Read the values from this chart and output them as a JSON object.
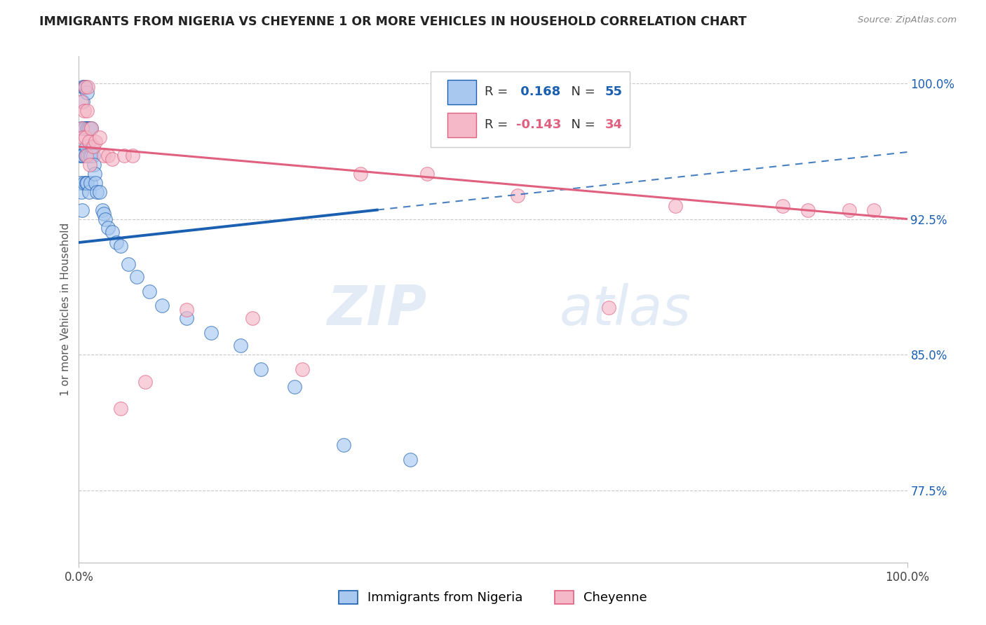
{
  "title": "IMMIGRANTS FROM NIGERIA VS CHEYENNE 1 OR MORE VEHICLES IN HOUSEHOLD CORRELATION CHART",
  "source": "Source: ZipAtlas.com",
  "ylabel": "1 or more Vehicles in Household",
  "legend_blue_r": "0.168",
  "legend_blue_n": "55",
  "legend_pink_r": "-0.143",
  "legend_pink_n": "34",
  "legend_label_blue": "Immigrants from Nigeria",
  "legend_label_pink": "Cheyenne",
  "xmin": 0.0,
  "xmax": 1.0,
  "ymin": 0.735,
  "ymax": 1.015,
  "yticks": [
    0.775,
    0.85,
    0.925,
    1.0
  ],
  "ytick_labels": [
    "77.5%",
    "85.0%",
    "92.5%",
    "100.0%"
  ],
  "xtick_labels": [
    "0.0%",
    "100.0%"
  ],
  "xtick_positions": [
    0.0,
    1.0
  ],
  "watermark_zip": "ZIP",
  "watermark_atlas": "atlas",
  "color_blue": "#a8c8f0",
  "color_pink": "#f4b8c8",
  "trendline_blue": "#1a5fb0",
  "trendline_pink": "#e06080",
  "blue_line_x": [
    0.0,
    1.0
  ],
  "blue_line_y": [
    0.912,
    0.962
  ],
  "blue_line_dashed_from": 0.36,
  "pink_line_x": [
    0.0,
    1.0
  ],
  "pink_line_y": [
    0.965,
    0.925
  ],
  "blue_scatter_x": [
    0.001,
    0.002,
    0.003,
    0.003,
    0.004,
    0.004,
    0.005,
    0.005,
    0.005,
    0.006,
    0.006,
    0.006,
    0.007,
    0.007,
    0.008,
    0.008,
    0.009,
    0.009,
    0.01,
    0.01,
    0.01,
    0.011,
    0.011,
    0.012,
    0.012,
    0.013,
    0.013,
    0.014,
    0.015,
    0.015,
    0.016,
    0.017,
    0.018,
    0.019,
    0.02,
    0.022,
    0.025,
    0.028,
    0.03,
    0.032,
    0.035,
    0.04,
    0.045,
    0.05,
    0.06,
    0.07,
    0.085,
    0.1,
    0.13,
    0.16,
    0.195,
    0.22,
    0.26,
    0.32,
    0.4
  ],
  "blue_scatter_y": [
    0.96,
    0.945,
    0.975,
    0.94,
    0.93,
    0.96,
    0.998,
    0.99,
    0.96,
    0.998,
    0.975,
    0.945,
    0.998,
    0.975,
    0.998,
    0.96,
    0.965,
    0.945,
    0.995,
    0.975,
    0.945,
    0.975,
    0.96,
    0.975,
    0.94,
    0.975,
    0.96,
    0.945,
    0.975,
    0.96,
    0.965,
    0.96,
    0.955,
    0.95,
    0.945,
    0.94,
    0.94,
    0.93,
    0.928,
    0.925,
    0.92,
    0.918,
    0.912,
    0.91,
    0.9,
    0.893,
    0.885,
    0.877,
    0.87,
    0.862,
    0.855,
    0.842,
    0.832,
    0.8,
    0.792
  ],
  "pink_scatter_x": [
    0.003,
    0.004,
    0.005,
    0.006,
    0.007,
    0.008,
    0.009,
    0.01,
    0.011,
    0.012,
    0.013,
    0.015,
    0.017,
    0.02,
    0.025,
    0.03,
    0.035,
    0.04,
    0.05,
    0.055,
    0.065,
    0.08,
    0.13,
    0.21,
    0.27,
    0.34,
    0.42,
    0.53,
    0.64,
    0.72,
    0.85,
    0.88,
    0.93,
    0.96
  ],
  "pink_scatter_y": [
    0.99,
    0.975,
    0.97,
    0.985,
    0.998,
    0.97,
    0.96,
    0.985,
    0.998,
    0.968,
    0.955,
    0.975,
    0.965,
    0.968,
    0.97,
    0.96,
    0.96,
    0.958,
    0.82,
    0.96,
    0.96,
    0.835,
    0.875,
    0.87,
    0.842,
    0.95,
    0.95,
    0.938,
    0.876,
    0.932,
    0.932,
    0.93,
    0.93,
    0.93
  ]
}
